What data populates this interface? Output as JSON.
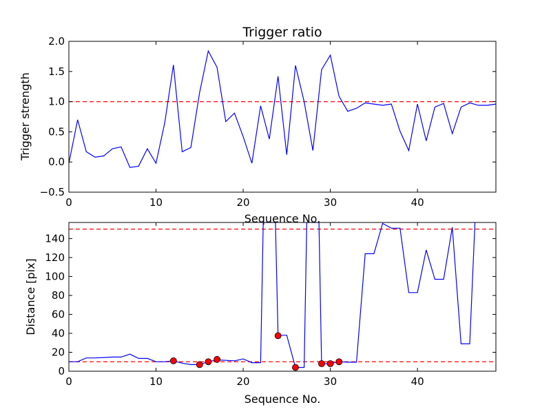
{
  "chart_data": [
    {
      "type": "line",
      "title": "Trigger ratio",
      "xlabel": "Sequence No.",
      "ylabel": "Trigger strength",
      "xlim": [
        0,
        49
      ],
      "ylim": [
        -0.5,
        2.0
      ],
      "xticks": [
        "0",
        "10",
        "20",
        "30",
        "40"
      ],
      "xtick_values": [
        0,
        10,
        20,
        30,
        40
      ],
      "yticks": [
        "−0.5",
        "0.0",
        "0.5",
        "1.0",
        "1.5",
        "2.0"
      ],
      "ytick_values": [
        -0.5,
        0.0,
        0.5,
        1.0,
        1.5,
        2.0
      ],
      "grid": false,
      "series": [
        {
          "color": "#0000ff",
          "style": "solid",
          "x": [
            0,
            1,
            2,
            3,
            4,
            5,
            6,
            7,
            8,
            9,
            10,
            11,
            12,
            13,
            14,
            15,
            16,
            17,
            18,
            19,
            20,
            21,
            22,
            23,
            24,
            25,
            26,
            27,
            28,
            29,
            30,
            31,
            32,
            33,
            34,
            35,
            36,
            37,
            38,
            39,
            40,
            41,
            42,
            43,
            44,
            45,
            46,
            47,
            48,
            49
          ],
          "values": [
            -0.02,
            0.7,
            0.17,
            0.08,
            0.1,
            0.22,
            0.25,
            -0.09,
            -0.07,
            0.22,
            -0.02,
            0.65,
            1.61,
            0.17,
            0.24,
            1.15,
            1.84,
            1.57,
            0.67,
            0.81,
            0.42,
            -0.02,
            0.93,
            0.38,
            1.42,
            0.12,
            1.6,
            1.0,
            0.19,
            1.53,
            1.77,
            1.09,
            0.84,
            0.89,
            0.98,
            0.96,
            0.94,
            0.96,
            0.51,
            0.19,
            0.96,
            0.35,
            0.91,
            0.97,
            0.47,
            0.91,
            0.98,
            0.94,
            0.94,
            0.96
          ]
        }
      ],
      "hlines": [
        {
          "y": 1.0,
          "color": "#ff0000",
          "style": "dashed"
        }
      ]
    },
    {
      "type": "line",
      "title": "",
      "xlabel": "Sequence No.",
      "ylabel": "Distance [pix]",
      "xlim": [
        0,
        49
      ],
      "ylim": [
        0,
        157
      ],
      "xticks": [
        "0",
        "10",
        "20",
        "30",
        "40"
      ],
      "xtick_values": [
        0,
        10,
        20,
        30,
        40
      ],
      "yticks": [
        "0",
        "20",
        "40",
        "60",
        "80",
        "100",
        "120",
        "140"
      ],
      "ytick_values": [
        0,
        20,
        40,
        60,
        80,
        100,
        120,
        140
      ],
      "grid": false,
      "series": [
        {
          "color": "#0000ff",
          "style": "solid",
          "x": [
            0,
            1,
            2,
            3,
            4,
            5,
            6,
            7,
            8,
            9,
            10,
            11,
            12,
            13,
            14,
            15,
            16,
            17,
            18,
            19,
            20,
            21,
            22,
            22.3,
            23.7,
            24,
            25,
            26,
            27,
            27.3,
            28.7,
            29,
            30,
            31,
            32,
            33,
            34,
            35,
            36,
            37,
            38,
            39,
            40,
            41,
            42,
            43,
            44,
            45,
            46,
            46.6
          ],
          "values": [
            10,
            10,
            14,
            14,
            14.5,
            15,
            15,
            18,
            13.5,
            13.5,
            10,
            10,
            11,
            8.5,
            7,
            7,
            10,
            12,
            11.5,
            11,
            13,
            9,
            9,
            157,
            157,
            38,
            38,
            4,
            4,
            157,
            157,
            8,
            8,
            10,
            9.5,
            9.5,
            124,
            124,
            156,
            151,
            151,
            83,
            83,
            128,
            97,
            97,
            152,
            29,
            29,
            157
          ]
        },
        {
          "color": "#ff0000",
          "style": "markers",
          "x": [
            12,
            15,
            16,
            17,
            24,
            26,
            29,
            30,
            31
          ],
          "values": [
            11,
            7,
            10,
            12.5,
            37.5,
            4,
            8,
            8,
            10
          ]
        }
      ],
      "hlines": [
        {
          "y": 150,
          "color": "#ff0000",
          "style": "dashed"
        },
        {
          "y": 10,
          "color": "#ff0000",
          "style": "dashed"
        }
      ]
    }
  ]
}
